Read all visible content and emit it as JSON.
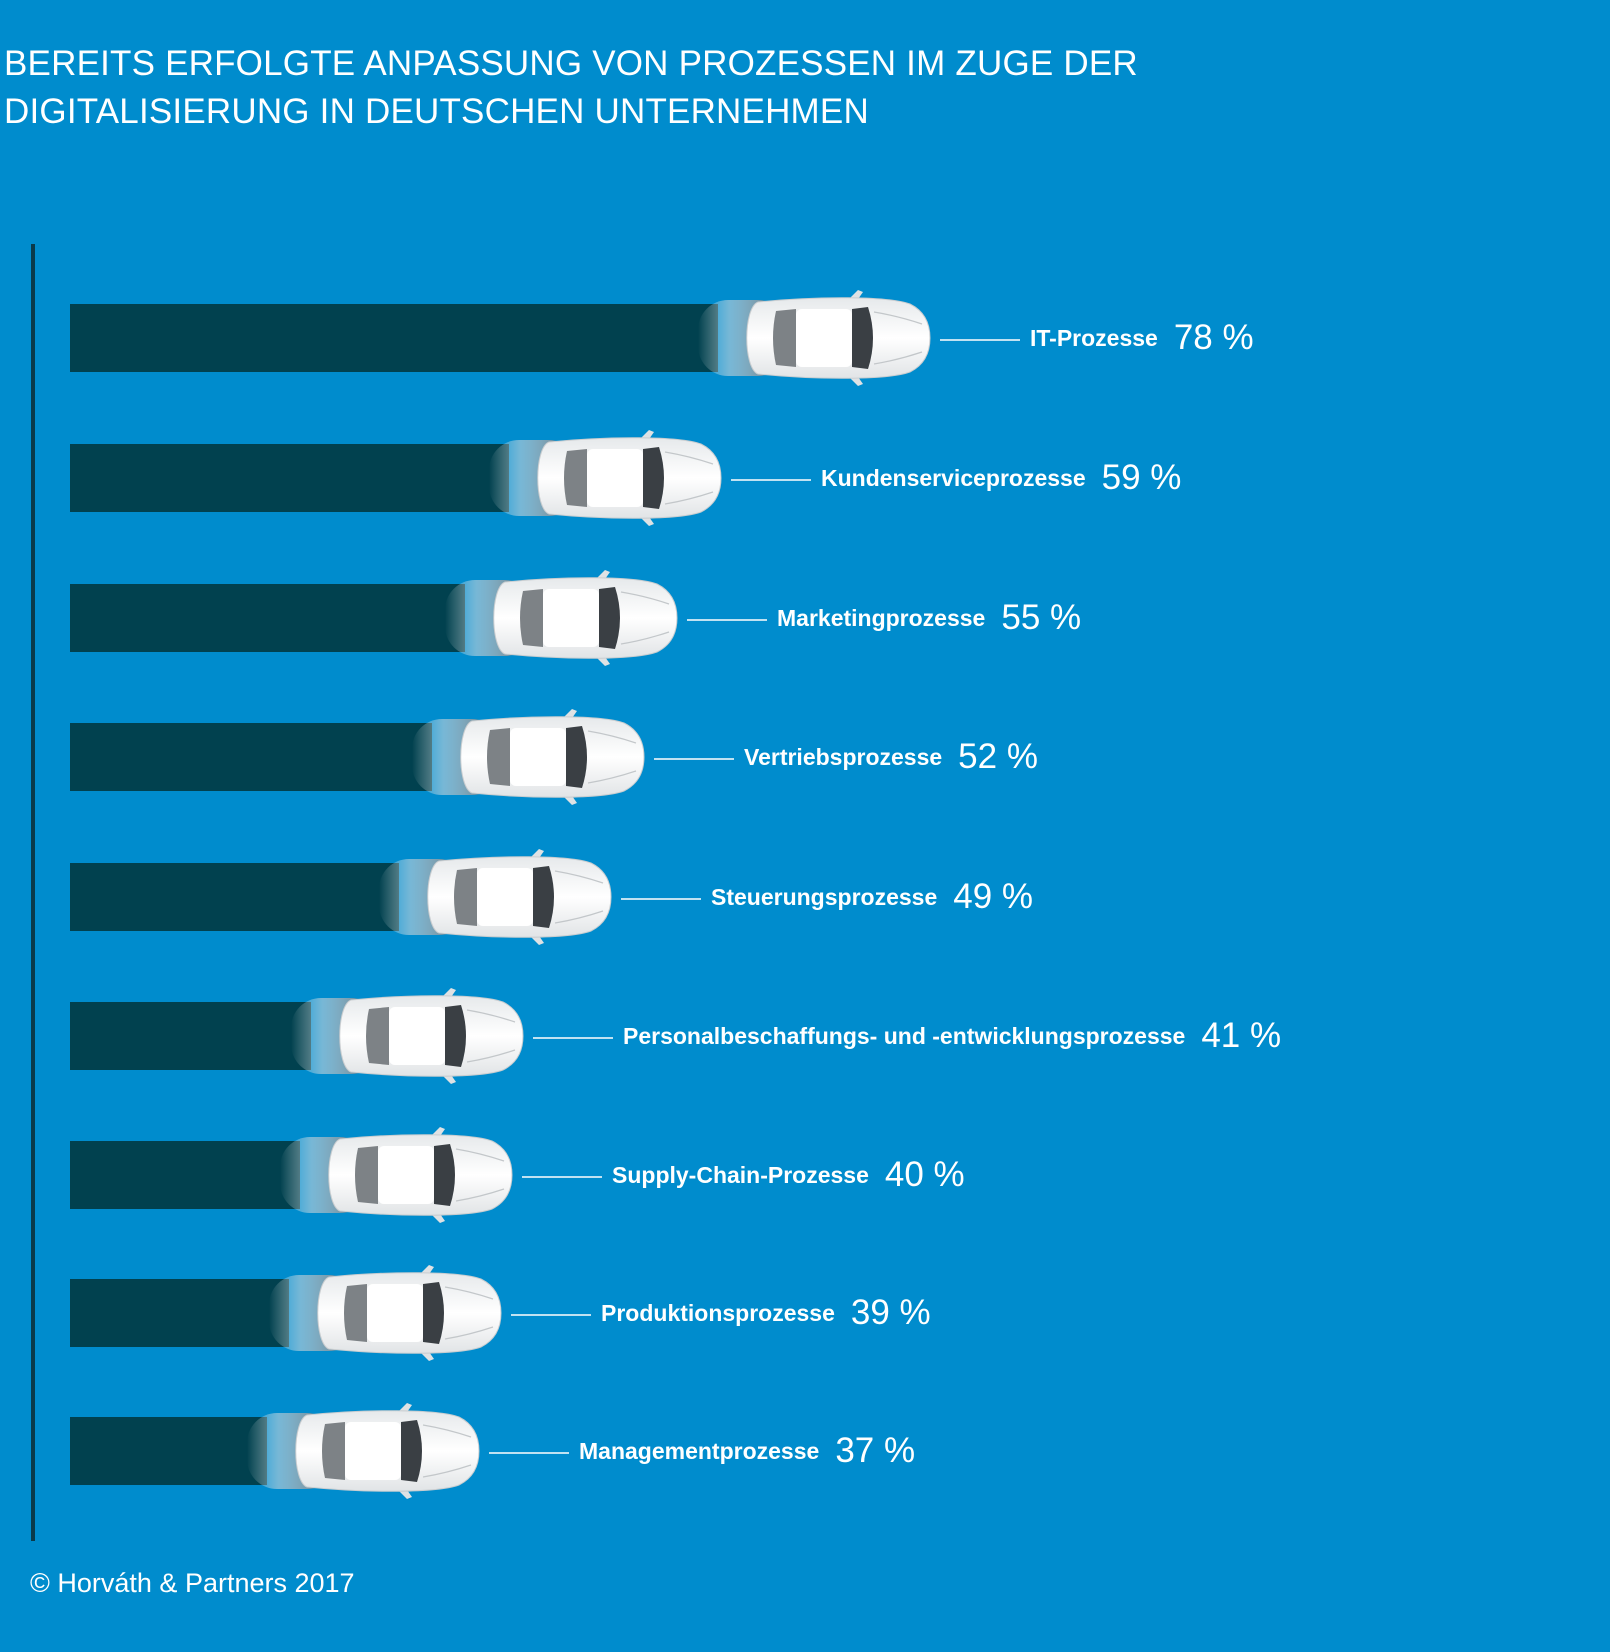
{
  "title": {
    "line1": "BEREITS ERFOLGTE ANPASSUNG VON PROZESSEN IM ZUGE DER",
    "line2": "DIGITALISIERUNG IN DEUTSCHEN UNTERNEHMEN"
  },
  "footer": "© Horváth & Partners 2017",
  "colors": {
    "background": "#008ccd",
    "bar": "#01414f",
    "axis": "#0a3a4a",
    "text": "#ffffff",
    "car": "#f2f4f5"
  },
  "chart_data": {
    "type": "bar",
    "orientation": "horizontal",
    "categories": [
      "IT-Prozesse",
      "Kundenserviceprozesse",
      "Marketingprozesse",
      "Vertriebsprozesse",
      "Steuerungsprozesse",
      "Personalbeschaffungs- und -entwicklungsprozesse",
      "Supply-Chain-Prozesse",
      "Produktionsprozesse",
      "Managementprozesse"
    ],
    "values": [
      78,
      59,
      55,
      52,
      49,
      41,
      40,
      39,
      37
    ],
    "value_labels": [
      "78 %",
      "59 %",
      "55 %",
      "52 %",
      "49 %",
      "41 %",
      "40 %",
      "39 %",
      "37 %"
    ],
    "unit": "%",
    "title": "BEREITS ERFOLGTE ANPASSUNG VON PROZESSEN IM ZUGE DER DIGITALISIERUNG IN DEUTSCHEN UNTERNEHMEN",
    "xlabel": "",
    "ylabel": "",
    "grid": false,
    "legend": "none"
  }
}
